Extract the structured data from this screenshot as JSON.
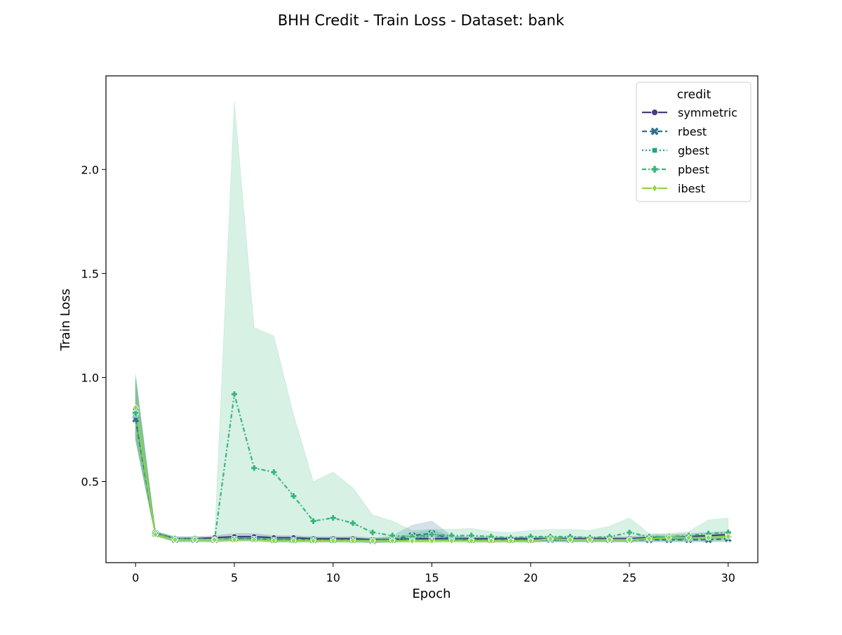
{
  "chart_data": {
    "type": "line",
    "title": "BHH Credit - Train Loss - Dataset: bank",
    "xlabel": "Epoch",
    "ylabel": "Train Loss",
    "xlim": [
      -1.5,
      31.5
    ],
    "ylim": [
      0.11,
      2.45
    ],
    "x_ticks": [
      0,
      5,
      10,
      15,
      20,
      25,
      30
    ],
    "y_ticks": [
      0.5,
      1.0,
      1.5,
      2.0
    ],
    "x_tick_labels": [
      "0",
      "5",
      "10",
      "15",
      "20",
      "25",
      "30"
    ],
    "y_tick_labels": [
      "0.5",
      "1.0",
      "1.5",
      "2.0"
    ],
    "grid": false,
    "legend": {
      "title": "credit",
      "placement": "top-right"
    },
    "x": [
      0,
      1,
      2,
      3,
      4,
      5,
      6,
      7,
      8,
      9,
      10,
      11,
      12,
      13,
      14,
      15,
      16,
      17,
      18,
      19,
      20,
      21,
      22,
      23,
      24,
      25,
      26,
      27,
      28,
      29,
      30
    ],
    "series": [
      {
        "name": "symmetric",
        "color": "#433e85",
        "dash": "solid",
        "marker": "circle",
        "values": [
          0.85,
          0.25,
          0.225,
          0.225,
          0.23,
          0.235,
          0.235,
          0.23,
          0.23,
          0.225,
          0.225,
          0.225,
          0.22,
          0.22,
          0.225,
          0.225,
          0.225,
          0.225,
          0.225,
          0.225,
          0.225,
          0.225,
          0.225,
          0.225,
          0.225,
          0.225,
          0.23,
          0.23,
          0.235,
          0.24,
          0.245
        ],
        "band_low": [
          0.72,
          0.24,
          0.215,
          0.215,
          0.22,
          0.22,
          0.22,
          0.22,
          0.22,
          0.215,
          0.215,
          0.215,
          0.21,
          0.21,
          0.215,
          0.215,
          0.215,
          0.215,
          0.215,
          0.215,
          0.215,
          0.215,
          0.215,
          0.215,
          0.215,
          0.215,
          0.22,
          0.22,
          0.225,
          0.23,
          0.235
        ],
        "band_high": [
          1.0,
          0.26,
          0.235,
          0.235,
          0.24,
          0.25,
          0.25,
          0.24,
          0.24,
          0.235,
          0.235,
          0.235,
          0.23,
          0.23,
          0.235,
          0.235,
          0.235,
          0.235,
          0.235,
          0.235,
          0.235,
          0.235,
          0.235,
          0.235,
          0.235,
          0.235,
          0.245,
          0.245,
          0.25,
          0.255,
          0.26
        ]
      },
      {
        "name": "rbest",
        "color": "#2c728e",
        "dash": "dashed",
        "marker": "x",
        "values": [
          0.8,
          0.25,
          0.22,
          0.22,
          0.22,
          0.225,
          0.225,
          0.22,
          0.22,
          0.22,
          0.22,
          0.22,
          0.215,
          0.22,
          0.24,
          0.25,
          0.225,
          0.22,
          0.22,
          0.22,
          0.22,
          0.22,
          0.22,
          0.22,
          0.22,
          0.22,
          0.22,
          0.22,
          0.22,
          0.22,
          0.225
        ],
        "band_low": [
          0.7,
          0.24,
          0.21,
          0.21,
          0.21,
          0.215,
          0.215,
          0.21,
          0.21,
          0.21,
          0.21,
          0.21,
          0.205,
          0.21,
          0.21,
          0.21,
          0.215,
          0.21,
          0.21,
          0.21,
          0.21,
          0.21,
          0.21,
          0.21,
          0.21,
          0.21,
          0.21,
          0.21,
          0.21,
          0.21,
          0.215
        ],
        "band_high": [
          0.98,
          0.26,
          0.23,
          0.23,
          0.23,
          0.235,
          0.235,
          0.23,
          0.23,
          0.23,
          0.23,
          0.23,
          0.225,
          0.24,
          0.29,
          0.31,
          0.24,
          0.23,
          0.23,
          0.23,
          0.23,
          0.23,
          0.23,
          0.23,
          0.23,
          0.23,
          0.235,
          0.235,
          0.235,
          0.235,
          0.24
        ]
      },
      {
        "name": "gbest",
        "color": "#20a486",
        "dash": "dotted",
        "marker": "square",
        "values": [
          0.82,
          0.25,
          0.22,
          0.22,
          0.22,
          0.225,
          0.225,
          0.22,
          0.22,
          0.22,
          0.22,
          0.22,
          0.215,
          0.22,
          0.225,
          0.24,
          0.225,
          0.22,
          0.22,
          0.22,
          0.22,
          0.22,
          0.22,
          0.22,
          0.22,
          0.22,
          0.225,
          0.225,
          0.225,
          0.23,
          0.235
        ],
        "band_low": [
          0.7,
          0.24,
          0.21,
          0.21,
          0.21,
          0.215,
          0.215,
          0.21,
          0.21,
          0.21,
          0.21,
          0.21,
          0.205,
          0.21,
          0.215,
          0.22,
          0.215,
          0.21,
          0.21,
          0.21,
          0.21,
          0.21,
          0.21,
          0.21,
          0.21,
          0.21,
          0.215,
          0.215,
          0.215,
          0.22,
          0.225
        ],
        "band_high": [
          1.0,
          0.26,
          0.23,
          0.23,
          0.23,
          0.235,
          0.235,
          0.23,
          0.23,
          0.23,
          0.23,
          0.23,
          0.225,
          0.23,
          0.25,
          0.27,
          0.235,
          0.23,
          0.23,
          0.23,
          0.23,
          0.23,
          0.23,
          0.23,
          0.23,
          0.23,
          0.235,
          0.235,
          0.235,
          0.24,
          0.245
        ]
      },
      {
        "name": "pbest",
        "color": "#35b779",
        "dash": "dashdot",
        "marker": "plus",
        "values": [
          0.83,
          0.25,
          0.225,
          0.225,
          0.22,
          0.92,
          0.565,
          0.545,
          0.43,
          0.31,
          0.325,
          0.3,
          0.255,
          0.24,
          0.235,
          0.245,
          0.24,
          0.24,
          0.235,
          0.23,
          0.235,
          0.235,
          0.235,
          0.23,
          0.235,
          0.255,
          0.235,
          0.235,
          0.24,
          0.25,
          0.255
        ],
        "band_low": [
          0.7,
          0.24,
          0.215,
          0.215,
          0.21,
          0.22,
          0.22,
          0.22,
          0.22,
          0.21,
          0.21,
          0.21,
          0.21,
          0.21,
          0.21,
          0.21,
          0.21,
          0.21,
          0.21,
          0.21,
          0.21,
          0.21,
          0.21,
          0.21,
          0.21,
          0.21,
          0.21,
          0.21,
          0.21,
          0.21,
          0.21
        ],
        "band_high": [
          1.02,
          0.26,
          0.235,
          0.235,
          0.23,
          2.33,
          1.24,
          1.2,
          0.82,
          0.5,
          0.545,
          0.47,
          0.34,
          0.31,
          0.265,
          0.27,
          0.27,
          0.275,
          0.26,
          0.255,
          0.265,
          0.27,
          0.27,
          0.265,
          0.285,
          0.325,
          0.25,
          0.25,
          0.26,
          0.315,
          0.325
        ]
      },
      {
        "name": "ibest",
        "color": "#8fd744",
        "dash": "solid",
        "marker": "diamond",
        "values": [
          0.855,
          0.245,
          0.22,
          0.22,
          0.22,
          0.22,
          0.22,
          0.215,
          0.215,
          0.215,
          0.215,
          0.215,
          0.215,
          0.215,
          0.215,
          0.215,
          0.215,
          0.215,
          0.215,
          0.215,
          0.215,
          0.225,
          0.22,
          0.22,
          0.22,
          0.22,
          0.225,
          0.23,
          0.23,
          0.23,
          0.235
        ],
        "band_low": [
          0.7,
          0.235,
          0.21,
          0.21,
          0.21,
          0.21,
          0.21,
          0.205,
          0.205,
          0.205,
          0.205,
          0.205,
          0.205,
          0.205,
          0.205,
          0.205,
          0.205,
          0.205,
          0.205,
          0.205,
          0.205,
          0.215,
          0.21,
          0.21,
          0.21,
          0.21,
          0.215,
          0.22,
          0.22,
          0.22,
          0.225
        ],
        "band_high": [
          1.0,
          0.255,
          0.23,
          0.23,
          0.23,
          0.23,
          0.23,
          0.225,
          0.225,
          0.225,
          0.225,
          0.225,
          0.225,
          0.225,
          0.225,
          0.225,
          0.225,
          0.225,
          0.225,
          0.225,
          0.225,
          0.235,
          0.23,
          0.23,
          0.23,
          0.23,
          0.24,
          0.245,
          0.245,
          0.245,
          0.25
        ]
      }
    ]
  }
}
